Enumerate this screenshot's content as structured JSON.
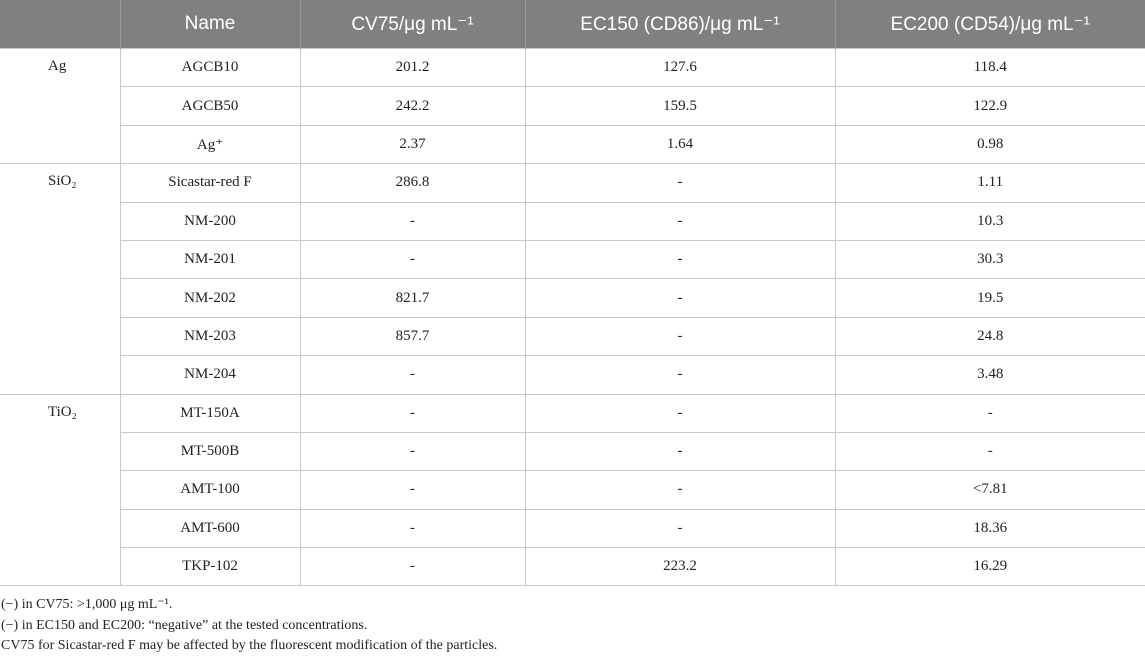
{
  "table": {
    "columns": [
      "Name",
      "CV75/μg mL⁻¹",
      "EC150 (CD86)/μg mL⁻¹",
      "EC200 (CD54)/μg mL⁻¹"
    ],
    "groups": [
      {
        "label": "Ag",
        "rows": [
          [
            "AGCB10",
            "201.2",
            "127.6",
            "118.4"
          ],
          [
            "AGCB50",
            "242.2",
            "159.5",
            "122.9"
          ],
          [
            "Ag⁺",
            "2.37",
            "1.64",
            "0.98"
          ]
        ]
      },
      {
        "label": "SiO₂",
        "rows": [
          [
            "Sicastar-red F",
            "286.8",
            "-",
            "1.11"
          ],
          [
            "NM-200",
            "-",
            "-",
            "10.3"
          ],
          [
            "NM-201",
            "-",
            "-",
            "30.3"
          ],
          [
            "NM-202",
            "821.7",
            "-",
            "19.5"
          ],
          [
            "NM-203",
            "857.7",
            "-",
            "24.8"
          ],
          [
            "NM-204",
            "-",
            "-",
            "3.48"
          ]
        ]
      },
      {
        "label": "TiO₂",
        "rows": [
          [
            "MT-150A",
            "-",
            "-",
            "-"
          ],
          [
            "MT-500B",
            "-",
            "-",
            "-"
          ],
          [
            "AMT-100",
            "-",
            "-",
            "<7.81"
          ],
          [
            "AMT-600",
            "-",
            "-",
            "18.36"
          ],
          [
            "TKP-102",
            "-",
            "223.2",
            "16.29"
          ]
        ]
      }
    ],
    "notes": [
      "(−) in CV75: >1,000 μg mL⁻¹.",
      "(−) in EC150 and EC200: “negative” at the tested concentrations.",
      "CV75 for Sicastar-red F may be affected by the fluorescent modification of the particles."
    ]
  }
}
